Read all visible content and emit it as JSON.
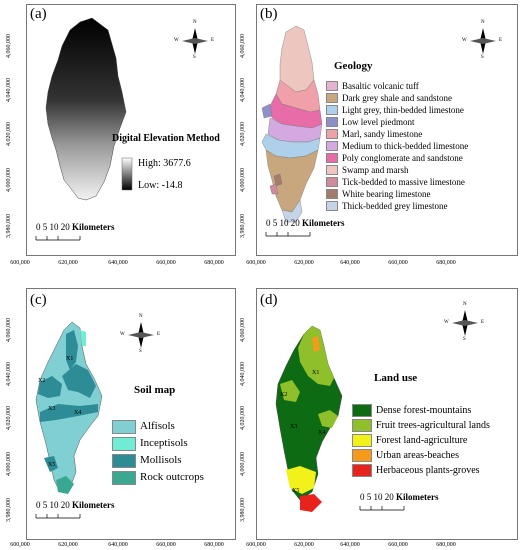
{
  "panels": {
    "a": {
      "label": "(a)",
      "title": "Digital Elevation Method",
      "high": "High:  3677.6",
      "low": "Low:  -14.8",
      "scale_nums": "0  5 10     20",
      "scale_unit": "Kilometers",
      "yticks": [
        "4,060,000",
        "4,040,000",
        "4,020,000",
        "4,000,000",
        "3,980,000"
      ],
      "xticks": [
        "600,000",
        "620,000",
        "640,000",
        "660,000",
        "680,000"
      ]
    },
    "b": {
      "label": "(b)",
      "title": "Geology",
      "scale_nums": "0  5 10     20",
      "scale_unit": "Kilometers",
      "legend": [
        {
          "name": "Basaltic volcanic tuff",
          "color": "#e6b3d0"
        },
        {
          "name": "Dark grey shale and sandstone",
          "color": "#c9a77e"
        },
        {
          "name": "Light grey, thin-bedded limestone",
          "color": "#aed0ea"
        },
        {
          "name": "Low level piedmont",
          "color": "#8f8fc9"
        },
        {
          "name": "Marl, sandy limestone",
          "color": "#f0a0a8"
        },
        {
          "name": "Medium to thick-bedded limestone",
          "color": "#d4a8e0"
        },
        {
          "name": "Poly conglomerate and sandstone",
          "color": "#e86ca8"
        },
        {
          "name": "Swamp and marsh",
          "color": "#ecc6bf"
        },
        {
          "name": "Tick-bedded to massive limestone",
          "color": "#d08a9e"
        },
        {
          "name": "White bearing limestone",
          "color": "#a57b6b"
        },
        {
          "name": "Thick-bedded grey limestone",
          "color": "#c6d4ea"
        }
      ],
      "yticks": [
        "4,060,000",
        "4,040,000",
        "4,020,000",
        "4,000,000",
        "3,980,000"
      ],
      "xticks": [
        "600,000",
        "620,000",
        "640,000",
        "660,000",
        "680,000"
      ]
    },
    "c": {
      "label": "(c)",
      "title": "Soil map",
      "scale_nums": "0  5 10     20",
      "scale_unit": "Kilometers",
      "legend": [
        {
          "name": "Alfisols",
          "color": "#7fcfd3"
        },
        {
          "name": "Inceptisols",
          "color": "#6fecd3"
        },
        {
          "name": "Mollisols",
          "color": "#2e8c96"
        },
        {
          "name": "Rock outcrops",
          "color": "#3aa890"
        }
      ],
      "zones": [
        "X1",
        "X2",
        "X3",
        "X4",
        "X5"
      ],
      "yticks": [
        "4,060,000",
        "4,040,000",
        "4,020,000",
        "4,000,000",
        "3,980,000"
      ],
      "xticks": [
        "600,000",
        "620,000",
        "640,000",
        "660,000",
        "680,000"
      ]
    },
    "d": {
      "label": "(d)",
      "title": "Land use",
      "scale_nums": "0  5 10     20",
      "scale_unit": "Kilometers",
      "legend": [
        {
          "name": "Dense forest-mountains",
          "color": "#0d6b14"
        },
        {
          "name": "Fruit trees-agricultural lands",
          "color": "#8fbf2a"
        },
        {
          "name": "Forest land-agriculture",
          "color": "#f2f21a"
        },
        {
          "name": "Urban areas-beaches",
          "color": "#f59a1c"
        },
        {
          "name": "Herbaceous plants-groves",
          "color": "#e8221c"
        }
      ],
      "zones": [
        "X1",
        "X2",
        "X3",
        "X4",
        "X5"
      ],
      "yticks": [
        "4,060,000",
        "4,040,000",
        "4,020,000",
        "4,000,000",
        "3,980,000"
      ],
      "xticks": [
        "600,000",
        "620,000",
        "640,000",
        "660,000",
        "680,000"
      ]
    }
  },
  "compass": {
    "n": "N",
    "s": "S",
    "e": "E",
    "w": "W"
  }
}
